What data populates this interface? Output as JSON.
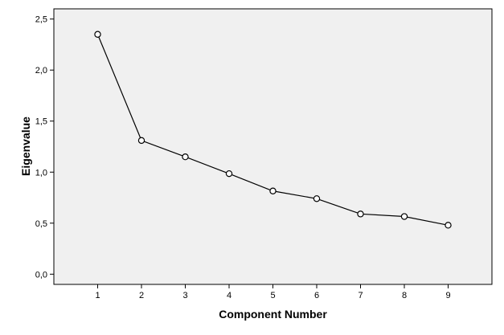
{
  "chart_data": {
    "type": "line",
    "title": "",
    "xlabel": "Component Number",
    "ylabel": "Eigenvalue",
    "x": [
      1,
      2,
      3,
      4,
      5,
      6,
      7,
      8,
      9
    ],
    "x_tick_labels": [
      "1",
      "2",
      "3",
      "4",
      "5",
      "6",
      "7",
      "8",
      "9"
    ],
    "series": [
      {
        "values": [
          2.35,
          1.31,
          1.15,
          0.985,
          0.815,
          0.74,
          0.59,
          0.565,
          0.48
        ]
      }
    ],
    "xlim": [
      0,
      10
    ],
    "ylim": [
      -0.1,
      2.6
    ],
    "y_ticks": [
      0.0,
      0.5,
      1.0,
      1.5,
      2.0,
      2.5
    ],
    "y_tick_labels": [
      "0,0",
      "0,5",
      "1,0",
      "1,5",
      "2,0",
      "2,5"
    ],
    "marker": "open-circle",
    "grid": false,
    "legend": "none",
    "colors": {
      "plot_background": "#f0f0f0",
      "line": "#000000",
      "marker_fill": "#ffffff"
    }
  }
}
